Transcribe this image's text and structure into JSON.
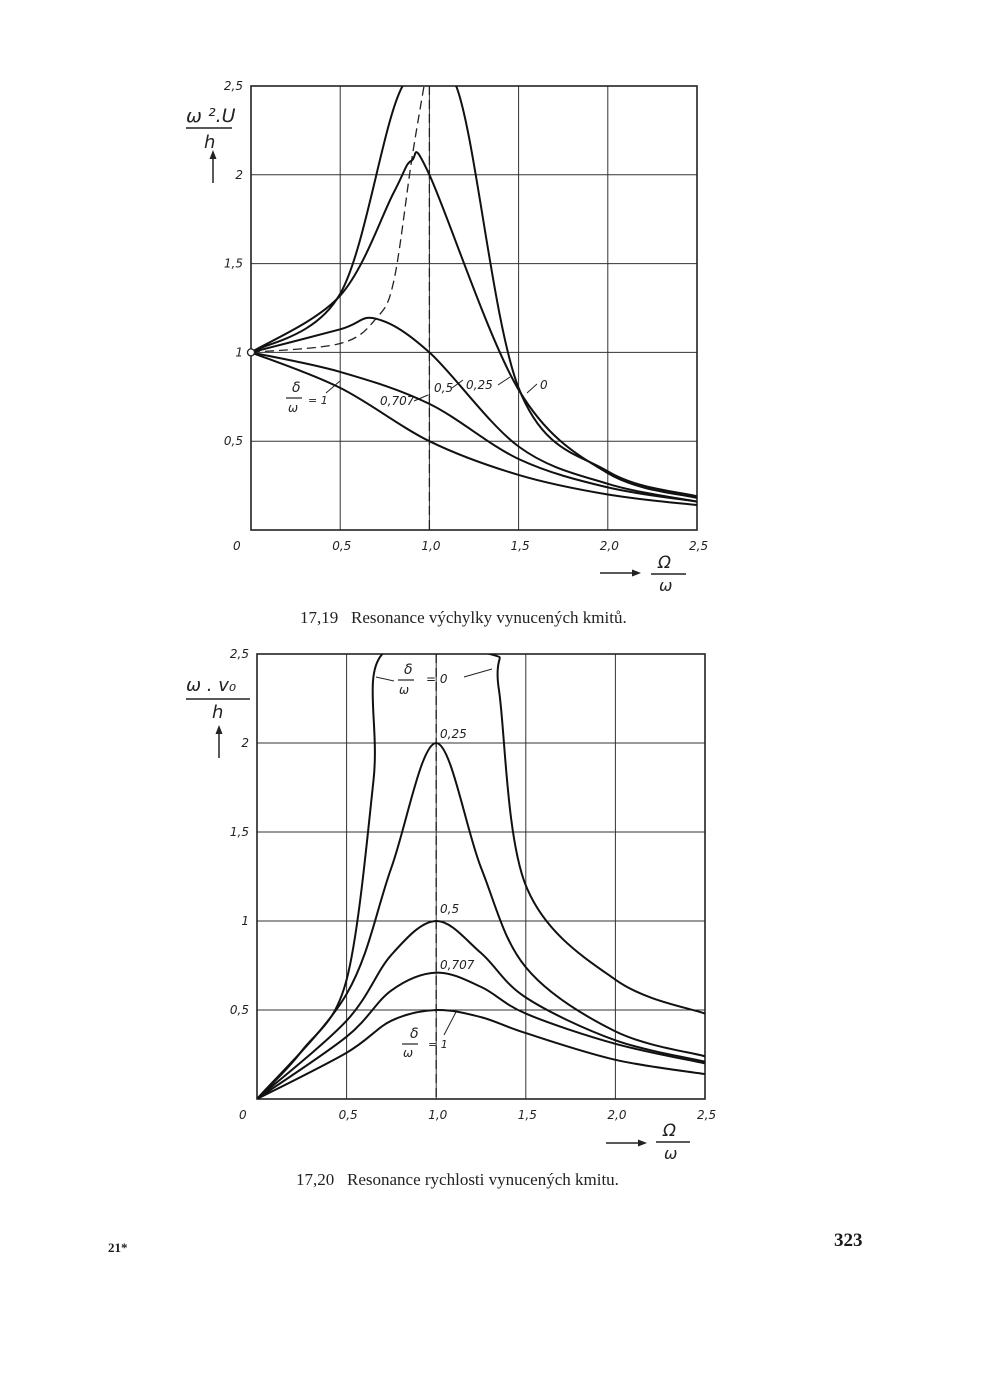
{
  "page": {
    "number": "323",
    "signature": "21*"
  },
  "figures": [
    {
      "id": "fig1",
      "caption_number": "17,19",
      "caption_text": "Resonance výchylky vynucených kmitů.",
      "y_label": "ω².U / h",
      "x_label": "Ω / ω",
      "curve_label_param": "δ / ω",
      "curve_labels": [
        "= 1",
        "0,707",
        "0,5",
        "0,25",
        "0"
      ]
    },
    {
      "id": "fig2",
      "caption_number": "17,20",
      "caption_text": "Resonance rychlosti vynucených kmitu.",
      "y_label": "ω . v₀ / h",
      "x_label": "Ω / ω",
      "curve_label_param": "δ / ω",
      "curve_labels": [
        "= 0",
        "0,25",
        "0,5",
        "0,707",
        "= 1"
      ]
    }
  ],
  "chart_data": [
    {
      "type": "line",
      "title": "Resonance výchylky vynucených kmitů.",
      "xlabel": "Ω/ω",
      "ylabel": "ω².U/h",
      "xlim": [
        0,
        2.5
      ],
      "ylim": [
        0,
        2.5
      ],
      "x_ticks": [
        "0",
        "0,5",
        "1,0",
        "1,5",
        "2,0",
        "2,5"
      ],
      "y_ticks": [
        "0,5",
        "1",
        "1,5",
        "2",
        "2,5"
      ],
      "grid": true,
      "series": [
        {
          "name": "δ/ω = 1",
          "x": [
            0,
            0.5,
            1.0,
            1.5,
            2.0,
            2.5
          ],
          "y": [
            1,
            0.8,
            0.5,
            0.31,
            0.2,
            0.14
          ]
        },
        {
          "name": "0,707",
          "x": [
            0,
            0.5,
            1.0,
            1.5,
            2.0,
            2.5
          ],
          "y": [
            1,
            0.89,
            0.71,
            0.4,
            0.24,
            0.16
          ]
        },
        {
          "name": "0,5",
          "x": [
            0,
            0.5,
            0.7,
            1.0,
            1.5,
            2.0,
            2.5
          ],
          "y": [
            1,
            1.13,
            1.19,
            1.0,
            0.47,
            0.26,
            0.16
          ]
        },
        {
          "name": "0,25",
          "x": [
            0,
            0.5,
            0.8,
            0.9,
            1.0,
            1.5,
            2.0,
            2.5
          ],
          "y": [
            1,
            1.32,
            1.9,
            2.08,
            2.0,
            0.79,
            0.32,
            0.18
          ]
        },
        {
          "name": "0",
          "x": [
            0,
            0.5,
            0.85,
            1.15,
            1.5,
            2.0,
            2.5
          ],
          "y": [
            1,
            1.33,
            2.5,
            2.5,
            0.8,
            0.33,
            0.19
          ]
        }
      ],
      "dashed_guides": [
        {
          "type": "vertical",
          "x": 1.0
        },
        {
          "type": "peak-locus",
          "x": [
            0,
            0.5,
            0.7,
            0.8,
            0.9,
            0.97
          ],
          "y": [
            1,
            1.05,
            1.19,
            1.4,
            2.08,
            2.5
          ]
        }
      ]
    },
    {
      "type": "line",
      "title": "Resonance rychlosti vynucených kmitu.",
      "xlabel": "Ω/ω",
      "ylabel": "ω.v₀/h",
      "xlim": [
        0,
        2.5
      ],
      "ylim": [
        0,
        2.5
      ],
      "x_ticks": [
        "0",
        "0,5",
        "1,0",
        "1,5",
        "2,0",
        "2,5"
      ],
      "y_ticks": [
        "0,5",
        "1",
        "1,5",
        "2",
        "2,5"
      ],
      "grid": true,
      "series": [
        {
          "name": "δ/ω = 0",
          "x": [
            0,
            0.25,
            0.5,
            0.65,
            0.7,
            1.3,
            1.35,
            1.5,
            2.0,
            2.5
          ],
          "y": [
            0,
            0.27,
            0.67,
            1.79,
            2.5,
            2.5,
            2.3,
            1.2,
            0.67,
            0.48
          ]
        },
        {
          "name": "0,25",
          "x": [
            0,
            0.5,
            0.75,
            1.0,
            1.25,
            1.5,
            2.0,
            2.5
          ],
          "y": [
            0,
            0.59,
            1.3,
            2.0,
            1.3,
            0.74,
            0.38,
            0.24
          ]
        },
        {
          "name": "0,5",
          "x": [
            0,
            0.5,
            0.75,
            1.0,
            1.25,
            1.5,
            2.0,
            2.5
          ],
          "y": [
            0,
            0.44,
            0.81,
            1.0,
            0.82,
            0.57,
            0.33,
            0.21
          ]
        },
        {
          "name": "0,707",
          "x": [
            0,
            0.5,
            0.75,
            1.0,
            1.25,
            1.5,
            2.0,
            2.5
          ],
          "y": [
            0,
            0.35,
            0.61,
            0.71,
            0.63,
            0.48,
            0.31,
            0.2
          ]
        },
        {
          "name": "δ/ω = 1",
          "x": [
            0,
            0.5,
            0.75,
            1.0,
            1.25,
            1.5,
            2.0,
            2.5
          ],
          "y": [
            0,
            0.26,
            0.44,
            0.5,
            0.46,
            0.37,
            0.22,
            0.14
          ]
        }
      ],
      "dashed_guides": [
        {
          "type": "vertical",
          "x": 1.0
        }
      ]
    }
  ]
}
